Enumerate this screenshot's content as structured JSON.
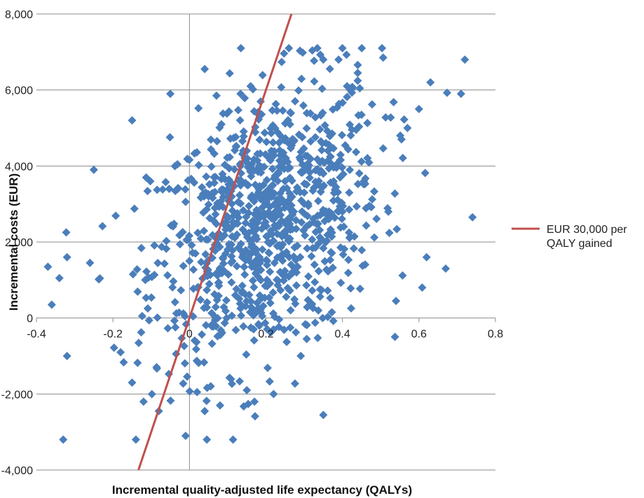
{
  "chart_data": {
    "type": "scatter",
    "title": "",
    "xlabel": "Incremental quality-adjusted life expectancy (QALYs)",
    "ylabel": "Incremental costs (EUR)",
    "xlim": [
      -0.4,
      0.8
    ],
    "ylim": [
      -4000,
      8000
    ],
    "x_ticks": [
      "-0.4",
      "-0.2",
      "0",
      "0.2",
      "0.4",
      "0.6",
      "0.8"
    ],
    "y_ticks": [
      "-4,000",
      "-2,000",
      "0",
      "2,000",
      "4,000",
      "6,000",
      "8,000"
    ],
    "grid": "horizontal",
    "legend_position": "right",
    "colors": {
      "points": "#4a7ebb",
      "threshold_line": "#c0504d"
    },
    "series": [
      {
        "type": "scatter",
        "marker": "diamond",
        "n_points": 1000,
        "x_mean": 0.2,
        "x_sd": 0.15,
        "y_mean": 2500,
        "y_sd": 1850,
        "x_range": [
          -0.37,
          0.74
        ],
        "y_range": [
          -3200,
          7100
        ],
        "sample_points": [
          [
            -0.37,
            1350
          ],
          [
            -0.36,
            350
          ],
          [
            -0.34,
            1050
          ],
          [
            -0.32,
            1600
          ],
          [
            -0.32,
            -1000
          ],
          [
            -0.33,
            -3200
          ],
          [
            -0.25,
            3900
          ],
          [
            -0.26,
            1450
          ],
          [
            -0.15,
            5200
          ],
          [
            -0.05,
            5900
          ],
          [
            0.04,
            6550
          ],
          [
            0.16,
            6100
          ],
          [
            0.26,
            7100
          ],
          [
            0.4,
            7100
          ],
          [
            0.39,
            6800
          ],
          [
            0.35,
            6800
          ],
          [
            0.44,
            6450
          ],
          [
            0.63,
            6200
          ],
          [
            0.72,
            6800
          ],
          [
            0.71,
            5900
          ],
          [
            0.74,
            2650
          ],
          [
            0.67,
            1300
          ],
          [
            0.62,
            1600
          ],
          [
            0.6,
            5500
          ],
          [
            0.57,
            5000
          ],
          [
            0.54,
            450
          ],
          [
            0.35,
            -2550
          ],
          [
            0.04,
            -2450
          ],
          [
            0.08,
            -2300
          ],
          [
            0.17,
            -2200
          ],
          [
            0.22,
            -2000
          ],
          [
            0.15,
            -1900
          ],
          [
            0.02,
            -1950
          ],
          [
            -0.08,
            -2450
          ],
          [
            -0.12,
            -2200
          ],
          [
            -0.15,
            -1700
          ],
          [
            -0.18,
            -900
          ],
          [
            -0.01,
            -3100
          ],
          [
            0.2,
            3000
          ],
          [
            0.3,
            3300
          ],
          [
            0.25,
            2500
          ],
          [
            0.1,
            1800
          ],
          [
            0.35,
            3800
          ],
          [
            0.05,
            3200
          ],
          [
            0.15,
            4400
          ],
          [
            0.28,
            1200
          ],
          [
            0.4,
            2800
          ],
          [
            0.0,
            1500
          ],
          [
            0.22,
            -300
          ],
          [
            0.12,
            600
          ]
        ]
      },
      {
        "name": "EUR 30,000 per QALY gained",
        "type": "line",
        "slope_eur_per_qaly": 30000,
        "points": [
          [
            -0.1333,
            -4000
          ],
          [
            0.2667,
            8000
          ]
        ]
      }
    ]
  }
}
